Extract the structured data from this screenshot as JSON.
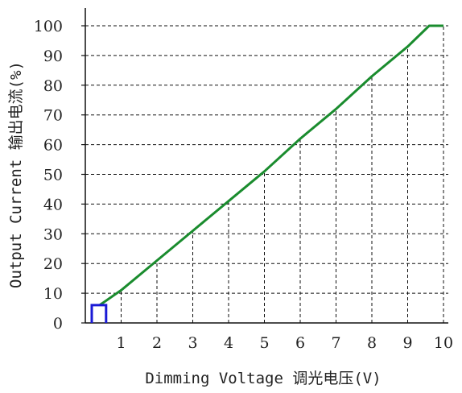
{
  "chart_data": {
    "type": "line",
    "title": "",
    "xlabel": "Dimming Voltage 调光电压(V)",
    "ylabel": "Output Current 输出电流(%)",
    "x_ticks": [
      "1",
      "2",
      "3",
      "4",
      "5",
      "6",
      "7",
      "8",
      "9",
      "10"
    ],
    "y_ticks": [
      "0",
      "10",
      "20",
      "30",
      "40",
      "50",
      "60",
      "70",
      "80",
      "90",
      "100"
    ],
    "xlim": [
      0,
      10
    ],
    "ylim": [
      0,
      100
    ],
    "grid": "dashed",
    "series": [
      {
        "color": "#1a8c2e",
        "points": [
          [
            0.4,
            6
          ],
          [
            1,
            11
          ],
          [
            2,
            21
          ],
          [
            3,
            31
          ],
          [
            4,
            41
          ],
          [
            5,
            51
          ],
          [
            6,
            62
          ],
          [
            7,
            72
          ],
          [
            8,
            83
          ],
          [
            9,
            93
          ],
          [
            9.6,
            100
          ],
          [
            10,
            100
          ]
        ]
      }
    ],
    "min_level_marker": {
      "color": "#1a1ad6",
      "x": [
        0,
        0.4
      ],
      "y": 6
    }
  }
}
